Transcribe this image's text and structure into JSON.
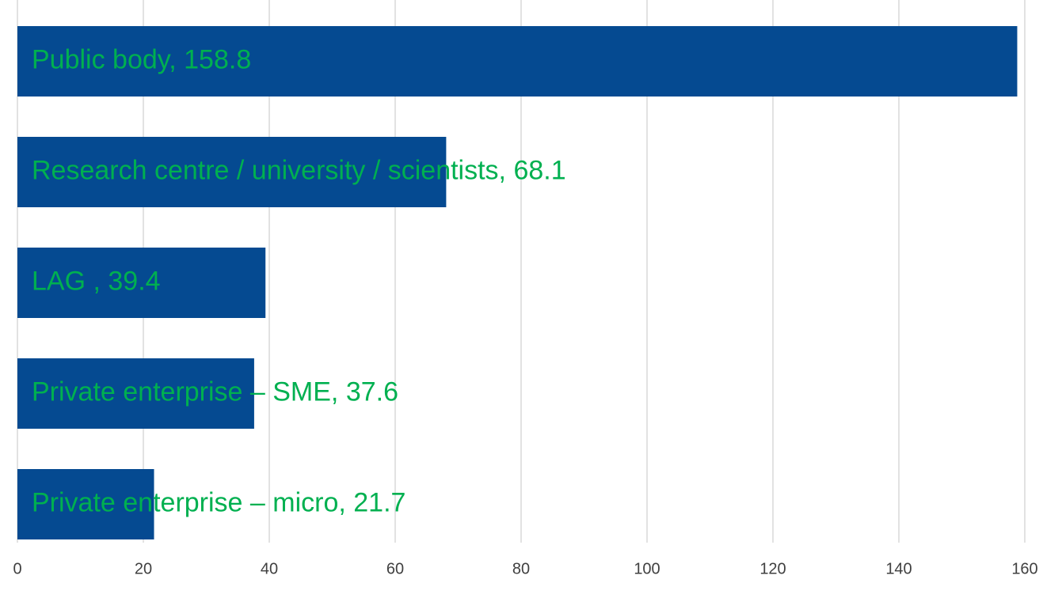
{
  "chart_data": {
    "type": "bar",
    "orientation": "horizontal",
    "categories": [
      "Public body",
      "Research centre / university / scientists",
      "LAG ",
      "Private enterprise – SME",
      "Private enterprise – micro"
    ],
    "values": [
      158.8,
      68.1,
      39.4,
      37.6,
      21.7
    ],
    "value_labels": [
      "Public body, 158.8",
      "Research centre / university / scientists, 68.1",
      "LAG , 39.4",
      "Private enterprise – SME, 37.6",
      "Private enterprise – micro, 21.7"
    ],
    "color": "#054a91",
    "label_color": "#00b050",
    "xlim": [
      0,
      160
    ],
    "xticks": [
      0,
      20,
      40,
      60,
      80,
      100,
      120,
      140,
      160
    ],
    "grid": true
  }
}
